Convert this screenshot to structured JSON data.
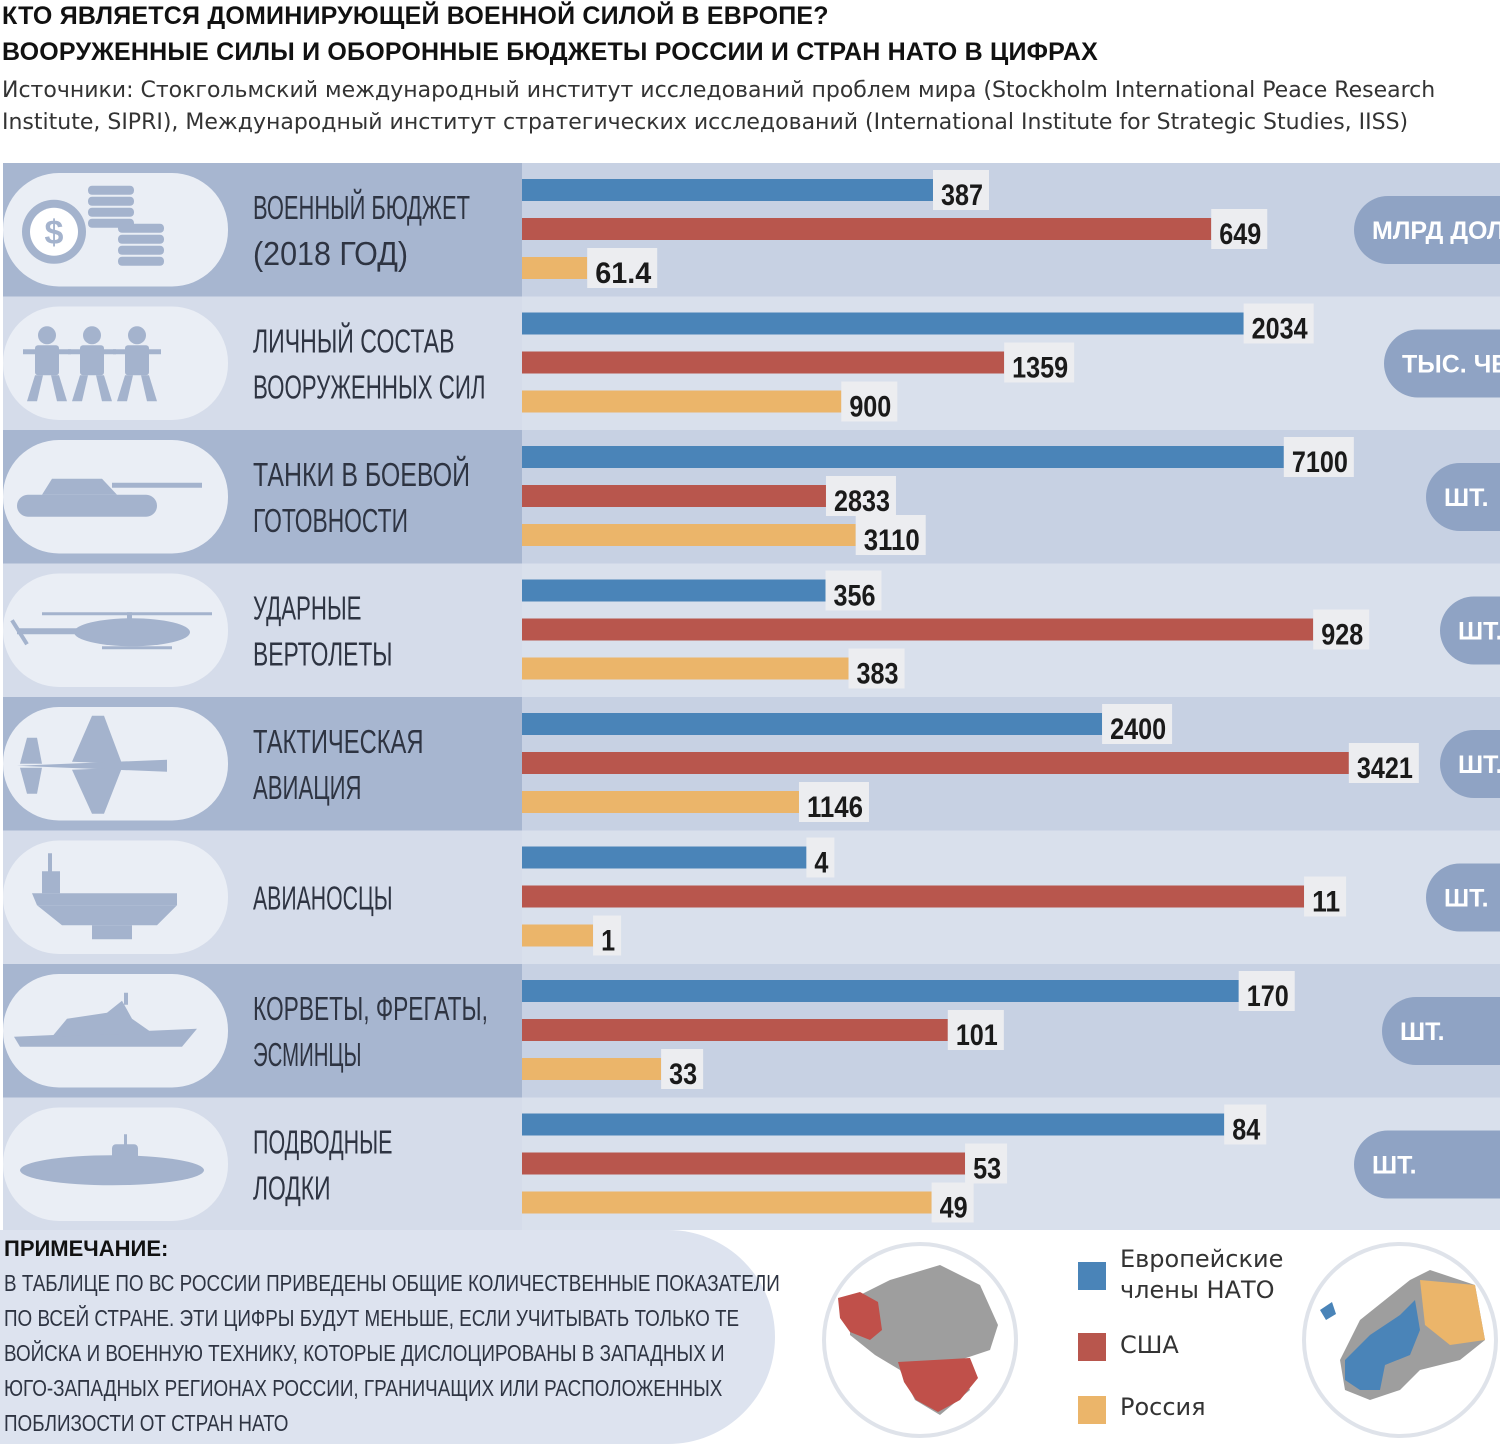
{
  "header": {
    "title_line1": "КТО ЯВЛЯЕТСЯ ДОМИНИРУЮЩЕЙ ВОЕННОЙ СИЛОЙ В ЕВРОПЕ?",
    "title_line2": "ВООРУЖЕННЫЕ СИЛЫ И ОБОРОННЫЕ БЮДЖЕТЫ РОССИИ И СТРАН НАТО В ЦИФРАХ",
    "source_line1": "Источники: Стокгольмский международный институт исследований проблем мира (Stockholm International Peace Research",
    "source_line2": "Institute, SIPRI), Международный институт стратегических исследований (International Institute for Strategic Studies, IISS)"
  },
  "colors": {
    "nato": "#4a84b8",
    "usa": "#b8564d",
    "russia": "#ebb56a",
    "band_dark": "#a7b6d0",
    "band_light": "#d5dcea",
    "pill": "#ffffff",
    "icon": "#a4b3cd",
    "unit_pill": "#8fa3c4"
  },
  "chart_data": {
    "type": "bar",
    "orientation": "horizontal",
    "series": [
      {
        "name": "Европейские члены НАТО",
        "key": "nato"
      },
      {
        "name": "США",
        "key": "usa"
      },
      {
        "name": "Россия",
        "key": "russia"
      }
    ],
    "categories": [
      {
        "label_lines": [
          "ВОЕННЫЙ БЮДЖЕТ",
          "(2018 ГОД)"
        ],
        "unit": "МЛРД ДОЛЛ.",
        "icon": "coins-dollar-icon",
        "values": [
          387,
          649,
          61.4
        ],
        "labels": [
          "387",
          "649",
          "61.4"
        ]
      },
      {
        "label_lines": [
          "ЛИЧНЫЙ СОСТАВ",
          "ВООРУЖЕННЫХ СИЛ"
        ],
        "unit": "ТЫС. ЧЕЛ.",
        "icon": "soldiers-icon",
        "values": [
          2034,
          1359,
          900
        ],
        "labels": [
          "2034",
          "1359",
          "900"
        ]
      },
      {
        "label_lines": [
          "ТАНКИ В БОЕВОЙ",
          "ГОТОВНОСТИ"
        ],
        "unit": "ШТ.",
        "icon": "tank-icon",
        "values": [
          7100,
          2833,
          3110
        ],
        "labels": [
          "7100",
          "2833",
          "3110"
        ]
      },
      {
        "label_lines": [
          "УДАРНЫЕ",
          "ВЕРТОЛЕТЫ"
        ],
        "unit": "ШТ.",
        "icon": "helicopter-icon",
        "values": [
          356,
          928,
          383
        ],
        "labels": [
          "356",
          "928",
          "383"
        ]
      },
      {
        "label_lines": [
          "ТАКТИЧЕСКАЯ",
          "АВИАЦИЯ"
        ],
        "unit": "ШТ.",
        "icon": "fighter-jet-icon",
        "values": [
          2400,
          3421,
          1146
        ],
        "labels": [
          "2400",
          "3421",
          "1146"
        ]
      },
      {
        "label_lines": [
          "АВИАНОСЦЫ"
        ],
        "unit": "ШТ.",
        "icon": "aircraft-carrier-icon",
        "values": [
          4,
          11,
          1
        ],
        "labels": [
          "4",
          "11",
          "1"
        ]
      },
      {
        "label_lines": [
          "КОРВЕТЫ, ФРЕГАТЫ,",
          "ЭСМИНЦЫ"
        ],
        "unit": "ШТ.",
        "icon": "warship-icon",
        "values": [
          170,
          101,
          33
        ],
        "labels": [
          "170",
          "101",
          "33"
        ]
      },
      {
        "label_lines": [
          "ПОДВОДНЫЕ",
          "ЛОДКИ"
        ],
        "unit": "ШТ.",
        "icon": "submarine-icon",
        "values": [
          84,
          53,
          49
        ],
        "labels": [
          "84",
          "53",
          "49"
        ]
      }
    ]
  },
  "note": {
    "heading": "ПРИМЕЧАНИЕ:",
    "lines": [
      "В ТАБЛИЦЕ ПО ВС РОССИИ ПРИВЕДЕНЫ ОБЩИЕ КОЛИЧЕСТВЕННЫЕ ПОКАЗАТЕЛИ",
      "ПО ВСЕЙ СТРАНЕ. ЭТИ ЦИФРЫ БУДУТ МЕНЬШЕ, ЕСЛИ УЧИТЫВАТЬ ТОЛЬКО ТЕ",
      "ВОЙСКА И ВОЕННУЮ ТЕХНИКУ, КОТОРЫЕ ДИСЛОЦИРОВАНЫ В ЗАПАДНЫХ И",
      "ЮГО-ЗАПАДНЫХ РЕГИОНАХ РОССИИ, ГРАНИЧАЩИХ ИЛИ РАСПОЛОЖЕННЫХ",
      "ПОБЛИЗОСТИ ОТ СТРАН НАТО"
    ]
  },
  "legend": {
    "nato_line1": "Европейские",
    "nato_line2": "члены НАТО",
    "usa": "США",
    "russia": "Россия"
  }
}
